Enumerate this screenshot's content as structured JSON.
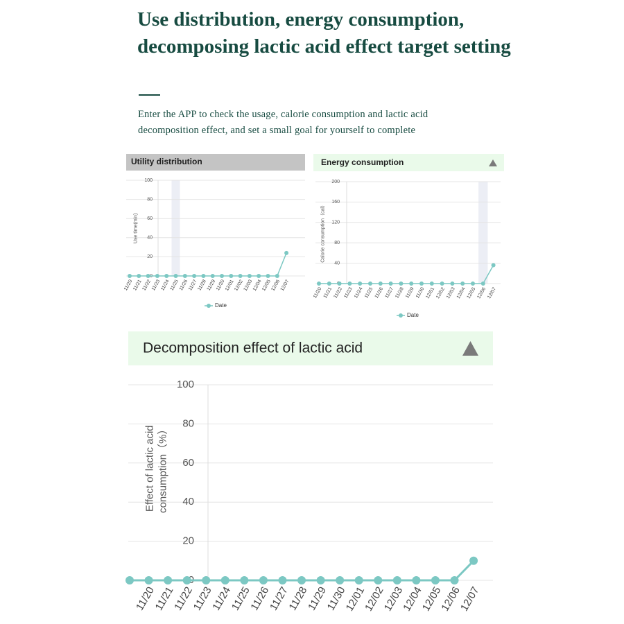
{
  "header": {
    "title": "Use distribution, energy consumption, decomposing lactic acid effect target setting",
    "subtitle": "Enter the APP to check the usage, calorie consumption and lactic acid decomposition effect, and set a small goal for yourself to complete"
  },
  "chart_data": [
    {
      "type": "line",
      "title": "Utility distribution",
      "y_label": "Use time(min)",
      "categories": [
        "11/20",
        "11/21",
        "11/22",
        "11/23",
        "11/24",
        "11/25",
        "11/26",
        "11/27",
        "11/28",
        "11/29",
        "11/30",
        "12/01",
        "12/02",
        "12/03",
        "12/04",
        "12/05",
        "12/06",
        "12/07"
      ],
      "series": [
        {
          "name": "Date",
          "color": "#7cc8c3",
          "values": [
            0,
            0,
            0,
            0,
            0,
            0,
            0,
            0,
            0,
            0,
            0,
            0,
            0,
            0,
            0,
            0,
            0,
            24
          ]
        }
      ],
      "ylim": [
        0,
        100
      ],
      "yticks": [
        0,
        20,
        40,
        60,
        80,
        100
      ],
      "grid": true
    },
    {
      "type": "line",
      "title": "Energy consumption",
      "y_label": "Calorie consumption（cal）",
      "categories": [
        "11/20",
        "11/21",
        "11/22",
        "11/23",
        "11/24",
        "11/25",
        "11/26",
        "11/27",
        "11/28",
        "11/29",
        "11/30",
        "12/01",
        "12/02",
        "12/03",
        "12/04",
        "12/05",
        "12/06",
        "12/07"
      ],
      "series": [
        {
          "name": "Date",
          "color": "#7cc8c3",
          "values": [
            0,
            0,
            0,
            0,
            0,
            0,
            0,
            0,
            0,
            0,
            0,
            0,
            0,
            0,
            0,
            0,
            0,
            36
          ]
        }
      ],
      "ylim": [
        0,
        200
      ],
      "yticks": [
        0,
        40,
        80,
        120,
        160,
        200
      ],
      "grid": true
    },
    {
      "type": "line",
      "title": "Decomposition effect of lactic acid",
      "y_label": "Effect of lactic acid consumption（%）",
      "categories": [
        null,
        "11/20",
        "11/21",
        "11/22",
        "11/23",
        "11/24",
        "11/25",
        "11/26",
        "11/27",
        "11/28",
        "11/29",
        "11/30",
        "12/01",
        "12/02",
        "12/03",
        "12/04",
        "12/05",
        "12/06",
        "12/07"
      ],
      "series": [
        {
          "color": "#7cc8c3",
          "values": [
            0,
            0,
            0,
            0,
            0,
            0,
            0,
            0,
            0,
            0,
            0,
            0,
            0,
            0,
            0,
            0,
            0,
            0,
            10
          ]
        }
      ],
      "ylim": [
        0,
        100
      ],
      "yticks": [
        0,
        20,
        40,
        60,
        80,
        100
      ],
      "grid": true
    }
  ]
}
